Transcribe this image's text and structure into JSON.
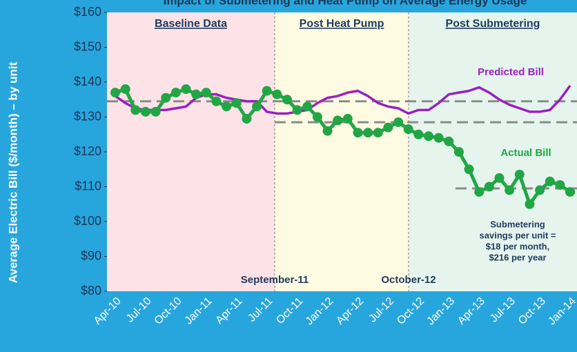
{
  "chart_data": {
    "type": "line",
    "title": "Impact of Submetering and Heat Pump on Average Energy Usage",
    "y_label": "Average Electric Bill ($/month) – by unit",
    "categories": [
      "Apr-10",
      null,
      null,
      "Jul-10",
      null,
      null,
      "Oct-10",
      null,
      null,
      "Jan-11",
      null,
      null,
      "Apr-11",
      null,
      null,
      "Jul-11",
      null,
      null,
      "Oct-11",
      null,
      null,
      "Jan-12",
      null,
      null,
      "Apr-12",
      null,
      null,
      "Jul-12",
      null,
      null,
      "Oct-12",
      null,
      null,
      "Jan-13",
      null,
      null,
      "Apr-13",
      null,
      null,
      "Jul-13",
      null,
      null,
      "Oct-13",
      null,
      null,
      "Jan-14"
    ],
    "series": [
      {
        "name": "Predicted Bill",
        "color": "#9b1fc4",
        "markers": false,
        "values": [
          136,
          134,
          132.5,
          132,
          132,
          132,
          132.5,
          133,
          135.5,
          136.5,
          136.5,
          135.5,
          135,
          134.5,
          134.5,
          131.5,
          131,
          131,
          131.5,
          132,
          134,
          135.5,
          136,
          137,
          137.5,
          136,
          134,
          133,
          132.5,
          131,
          132,
          132,
          134,
          136.5,
          137,
          137.5,
          138.5,
          137,
          135,
          133.5,
          132.5,
          131.5,
          131.5,
          132,
          135,
          139
        ]
      },
      {
        "name": "Actual Bill",
        "color": "#22a645",
        "markers": true,
        "values": [
          137,
          138,
          132,
          131.5,
          131.5,
          135.5,
          137,
          138,
          136.5,
          137,
          134.5,
          133,
          134,
          129.5,
          133,
          137.5,
          136.5,
          135,
          132,
          133,
          130,
          126,
          129,
          129.5,
          125.5,
          125.5,
          125.5,
          127,
          128.5,
          126.5,
          125,
          124.5,
          124,
          123,
          120,
          115,
          108.5,
          110,
          112.5,
          109,
          113.5,
          105,
          109,
          111.5,
          110.5,
          108.5
        ]
      }
    ],
    "ylim": [
      80,
      160
    ],
    "yticks": [
      {
        "value": 80,
        "label": "$80"
      },
      {
        "value": 90,
        "label": "$90"
      },
      {
        "value": 100,
        "label": "$100"
      },
      {
        "value": 110,
        "label": "$110"
      },
      {
        "value": 120,
        "label": "$120"
      },
      {
        "value": 130,
        "label": "$130"
      },
      {
        "value": 140,
        "label": "$140"
      },
      {
        "value": 150,
        "label": "$150"
      },
      {
        "value": 160,
        "label": "$160"
      }
    ],
    "regions": [
      {
        "label": "Baseline Data",
        "color": "#fde3e7"
      },
      {
        "label": "Post Heat Pump",
        "color": "#fefbe2"
      },
      {
        "label": "Post Submetering",
        "color": "#e5f5ed"
      }
    ],
    "annotations": [
      "September-11",
      "October-12"
    ],
    "reference_lines": [
      {
        "value": 134.5
      },
      {
        "value": 128.5
      },
      {
        "value": 109.5
      }
    ],
    "note_lines": [
      "Submetering",
      "savings per unit =",
      "$18 per month,",
      "$216 per year"
    ]
  }
}
